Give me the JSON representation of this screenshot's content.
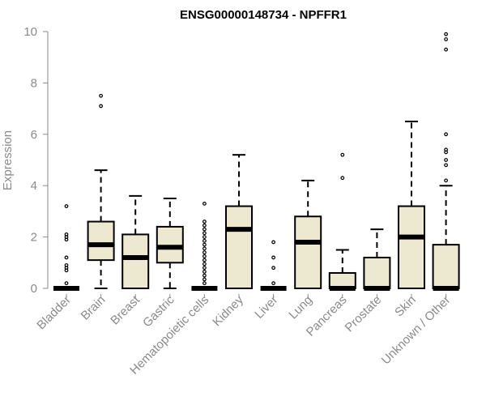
{
  "chart_data": {
    "type": "boxplot",
    "title": "ENSG00000148734 - NPFFR1",
    "xlabel": "",
    "ylabel": "Expression",
    "ylim": [
      0,
      10
    ],
    "yticks": [
      0,
      2,
      4,
      6,
      8,
      10
    ],
    "grid": false,
    "box_color": "#ede8d0",
    "categories": [
      "Bladder",
      "Brain",
      "Breast",
      "Gastric",
      "Hematopoietic cells",
      "Kidney",
      "Liver",
      "Lung",
      "Pancreas",
      "Prostate",
      "Skin",
      "Unknown / Other"
    ],
    "boxes": [
      {
        "min": 0,
        "q1": 0,
        "median": 0,
        "q3": 0,
        "max": 0,
        "outliers": [
          0.2,
          0.7,
          0.8,
          0.9,
          1.2,
          1.9,
          2.0,
          2.1,
          3.2
        ]
      },
      {
        "min": 0,
        "q1": 1.1,
        "median": 1.7,
        "q3": 2.6,
        "max": 4.6,
        "outliers": [
          7.1,
          7.5
        ]
      },
      {
        "min": 0,
        "q1": 0,
        "median": 1.2,
        "q3": 2.1,
        "max": 3.6,
        "outliers": []
      },
      {
        "min": 0,
        "q1": 1.0,
        "median": 1.6,
        "q3": 2.4,
        "max": 3.5,
        "outliers": []
      },
      {
        "min": 0,
        "q1": 0,
        "median": 0,
        "q3": 0,
        "max": 0,
        "outliers": [
          0.2,
          0.35,
          0.5,
          0.65,
          0.8,
          0.95,
          1.1,
          1.25,
          1.4,
          1.55,
          1.7,
          1.85,
          2.0,
          2.15,
          2.3,
          2.45,
          2.6,
          3.3
        ]
      },
      {
        "min": 0,
        "q1": 0,
        "median": 2.3,
        "q3": 3.2,
        "max": 5.2,
        "outliers": []
      },
      {
        "min": 0,
        "q1": 0,
        "median": 0,
        "q3": 0,
        "max": 0,
        "outliers": [
          0.2,
          0.8,
          1.2,
          1.8
        ]
      },
      {
        "min": 0,
        "q1": 0,
        "median": 1.8,
        "q3": 2.8,
        "max": 4.2,
        "outliers": []
      },
      {
        "min": 0,
        "q1": 0,
        "median": 0,
        "q3": 0.6,
        "max": 1.5,
        "outliers": [
          4.3,
          5.2
        ]
      },
      {
        "min": 0,
        "q1": 0,
        "median": 0,
        "q3": 1.2,
        "max": 2.3,
        "outliers": []
      },
      {
        "min": 0,
        "q1": 0,
        "median": 2.0,
        "q3": 3.2,
        "max": 6.5,
        "outliers": []
      },
      {
        "min": 0,
        "q1": 0,
        "median": 0,
        "q3": 1.7,
        "max": 4.0,
        "outliers": [
          4.2,
          4.8,
          5.0,
          5.3,
          5.4,
          6.0,
          9.3,
          9.7,
          9.9
        ]
      }
    ]
  }
}
